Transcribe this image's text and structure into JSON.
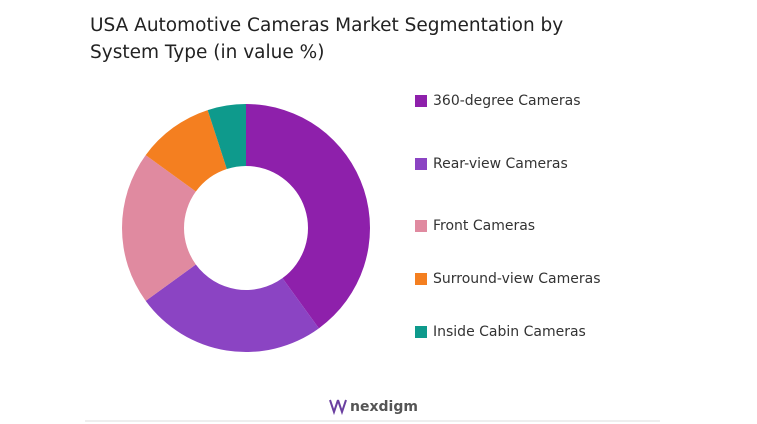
{
  "chart_data": {
    "type": "donut",
    "title": "USA Automotive Cameras Market Segmentation by System Type (in value %)",
    "categories": [
      "360-degree Cameras",
      "Rear-view Cameras",
      "Front Cameras",
      "Surround-view Cameras",
      "Inside Cabin Cameras"
    ],
    "values": [
      40,
      25,
      20,
      10,
      5
    ],
    "colors": [
      "#8e20ab",
      "#8b44c3",
      "#e08aa0",
      "#f47f20",
      "#0e9a8c"
    ]
  },
  "logo": "nexdigm"
}
